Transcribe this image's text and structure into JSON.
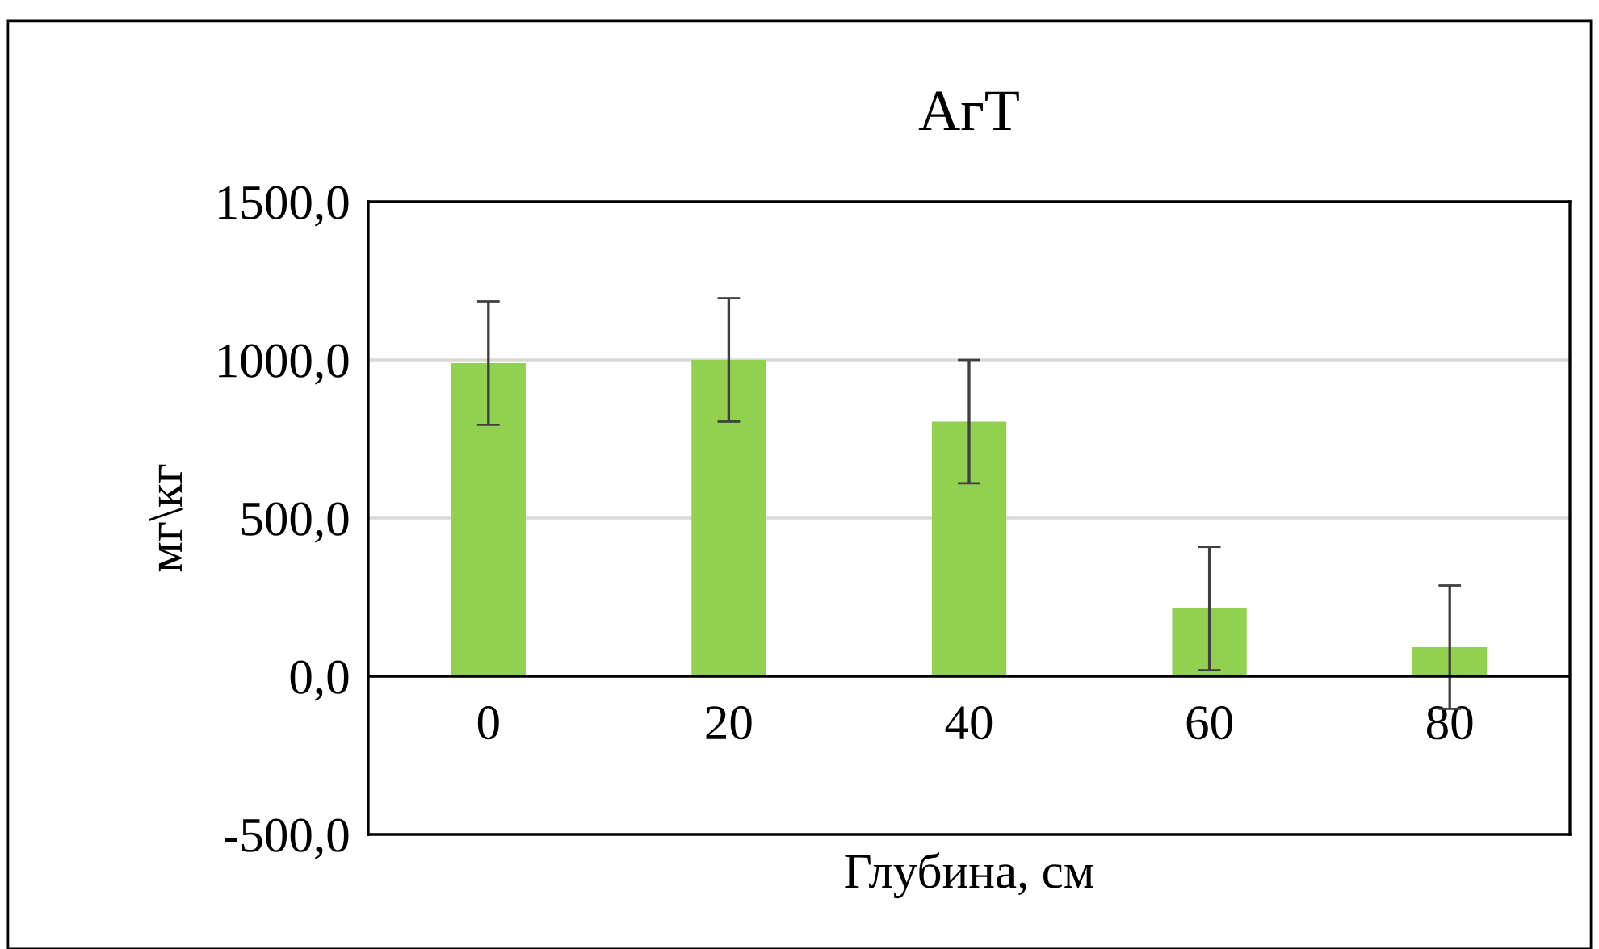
{
  "chart_data": {
    "type": "bar",
    "title": "АгТ",
    "xlabel": "Глубина, см",
    "ylabel": "мг\\кг",
    "categories": [
      "0",
      "20",
      "40",
      "60",
      "80"
    ],
    "values": [
      990,
      1000,
      805,
      214,
      92
    ],
    "errors": [
      195,
      195,
      195,
      195,
      195
    ],
    "color": "#92d050",
    "ylim": [
      -500,
      1500
    ],
    "yticks": [
      {
        "value": -500,
        "label": "-500,0"
      },
      {
        "value": 0,
        "label": "0,0"
      },
      {
        "value": 500,
        "label": "500,0"
      },
      {
        "value": 1000,
        "label": "1000,0"
      },
      {
        "value": 1500,
        "label": "1500,0"
      }
    ],
    "grid": "y"
  }
}
